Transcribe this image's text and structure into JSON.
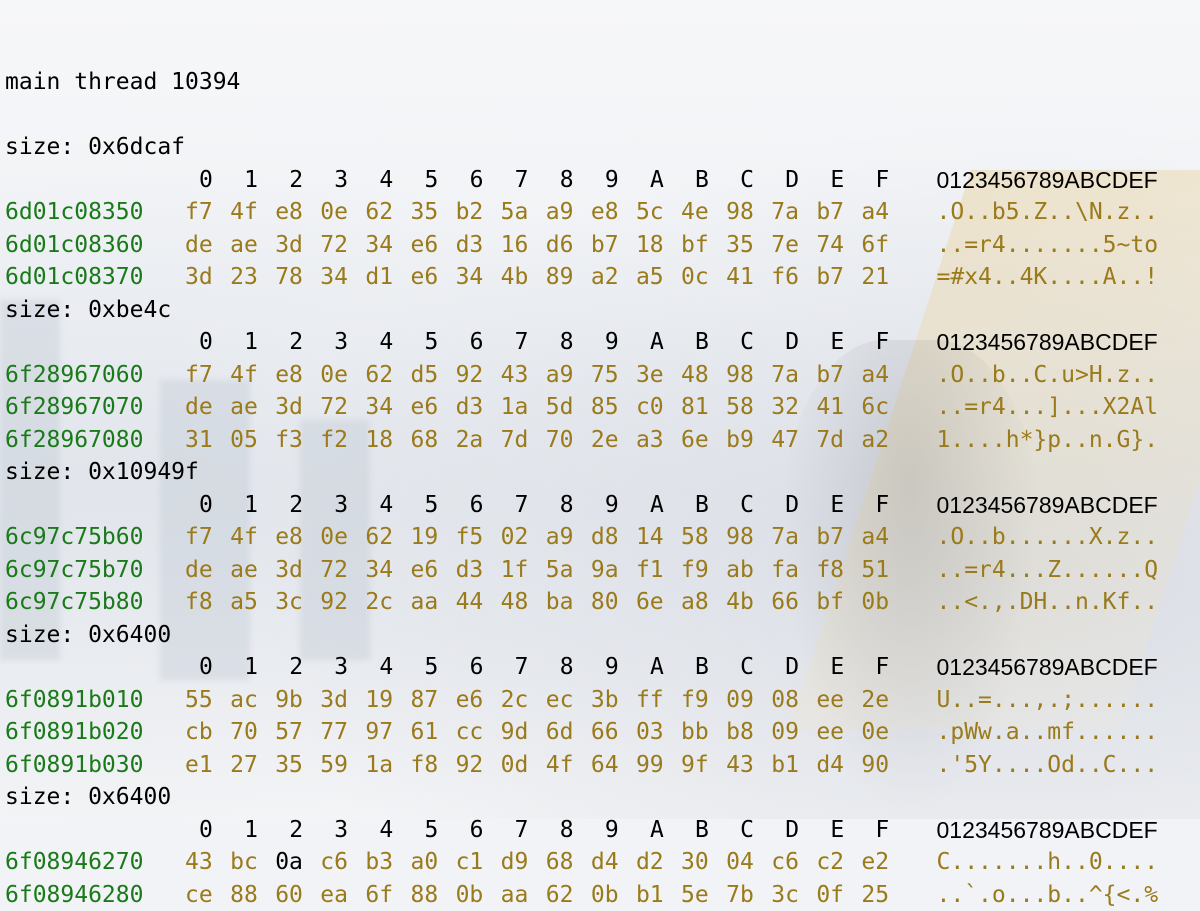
{
  "header": {
    "thread_line": "main thread 10394"
  },
  "column_headers": [
    "0",
    "1",
    "2",
    "3",
    "4",
    "5",
    "6",
    "7",
    "8",
    "9",
    "A",
    "B",
    "C",
    "D",
    "E",
    "F"
  ],
  "ascii_header": "0123456789ABCDEF",
  "blocks": [
    {
      "size_line": "size: 0x6dcaf",
      "rows": [
        {
          "address": "6d01c08350",
          "bytes": [
            "f7",
            "4f",
            "e8",
            "0e",
            "62",
            "35",
            "b2",
            "5a",
            "a9",
            "e8",
            "5c",
            "4e",
            "98",
            "7a",
            "b7",
            "a4"
          ],
          "ascii": ".O..b5.Z..\\N.z.."
        },
        {
          "address": "6d01c08360",
          "bytes": [
            "de",
            "ae",
            "3d",
            "72",
            "34",
            "e6",
            "d3",
            "16",
            "d6",
            "b7",
            "18",
            "bf",
            "35",
            "7e",
            "74",
            "6f"
          ],
          "ascii": "..=r4.......5~to"
        },
        {
          "address": "6d01c08370",
          "bytes": [
            "3d",
            "23",
            "78",
            "34",
            "d1",
            "e6",
            "34",
            "4b",
            "89",
            "a2",
            "a5",
            "0c",
            "41",
            "f6",
            "b7",
            "21"
          ],
          "ascii": "=#x4..4K....A..!"
        }
      ]
    },
    {
      "size_line": "size: 0xbe4c",
      "rows": [
        {
          "address": "6f28967060",
          "bytes": [
            "f7",
            "4f",
            "e8",
            "0e",
            "62",
            "d5",
            "92",
            "43",
            "a9",
            "75",
            "3e",
            "48",
            "98",
            "7a",
            "b7",
            "a4"
          ],
          "ascii": ".O..b..C.u>H.z.."
        },
        {
          "address": "6f28967070",
          "bytes": [
            "de",
            "ae",
            "3d",
            "72",
            "34",
            "e6",
            "d3",
            "1a",
            "5d",
            "85",
            "c0",
            "81",
            "58",
            "32",
            "41",
            "6c"
          ],
          "ascii": "..=r4...]...X2Al"
        },
        {
          "address": "6f28967080",
          "bytes": [
            "31",
            "05",
            "f3",
            "f2",
            "18",
            "68",
            "2a",
            "7d",
            "70",
            "2e",
            "a3",
            "6e",
            "b9",
            "47",
            "7d",
            "a2"
          ],
          "ascii": "1....h*}p..n.G}."
        }
      ]
    },
    {
      "size_line": "size: 0x10949f",
      "rows": [
        {
          "address": "6c97c75b60",
          "bytes": [
            "f7",
            "4f",
            "e8",
            "0e",
            "62",
            "19",
            "f5",
            "02",
            "a9",
            "d8",
            "14",
            "58",
            "98",
            "7a",
            "b7",
            "a4"
          ],
          "ascii": ".O..b......X.z.."
        },
        {
          "address": "6c97c75b70",
          "bytes": [
            "de",
            "ae",
            "3d",
            "72",
            "34",
            "e6",
            "d3",
            "1f",
            "5a",
            "9a",
            "f1",
            "f9",
            "ab",
            "fa",
            "f8",
            "51"
          ],
          "ascii": "..=r4...Z......Q"
        },
        {
          "address": "6c97c75b80",
          "bytes": [
            "f8",
            "a5",
            "3c",
            "92",
            "2c",
            "aa",
            "44",
            "48",
            "ba",
            "80",
            "6e",
            "a8",
            "4b",
            "66",
            "bf",
            "0b"
          ],
          "ascii": "..<.,.DH..n.Kf.."
        }
      ]
    },
    {
      "size_line": "size: 0x6400",
      "rows": [
        {
          "address": "6f0891b010",
          "bytes": [
            "55",
            "ac",
            "9b",
            "3d",
            "19",
            "87",
            "e6",
            "2c",
            "ec",
            "3b",
            "ff",
            "f9",
            "09",
            "08",
            "ee",
            "2e"
          ],
          "ascii": "U..=...,.;......"
        },
        {
          "address": "6f0891b020",
          "bytes": [
            "cb",
            "70",
            "57",
            "77",
            "97",
            "61",
            "cc",
            "9d",
            "6d",
            "66",
            "03",
            "bb",
            "b8",
            "09",
            "ee",
            "0e"
          ],
          "ascii": ".pWw.a..mf......"
        },
        {
          "address": "6f0891b030",
          "bytes": [
            "e1",
            "27",
            "35",
            "59",
            "1a",
            "f8",
            "92",
            "0d",
            "4f",
            "64",
            "99",
            "9f",
            "43",
            "b1",
            "d4",
            "90"
          ],
          "ascii": ".'5Y....Od..C..."
        }
      ]
    },
    {
      "size_line": "size: 0x6400",
      "rows": [
        {
          "address": "6f08946270",
          "bytes": [
            "43",
            "bc",
            "0a",
            "c6",
            "b3",
            "a0",
            "c1",
            "d9",
            "68",
            "d4",
            "d2",
            "30",
            "04",
            "c6",
            "c2",
            "e2"
          ],
          "ascii": "C.......h..0....",
          "highlight_index": 2
        },
        {
          "address": "6f08946280",
          "bytes": [
            "ce",
            "88",
            "60",
            "ea",
            "6f",
            "88",
            "0b",
            "aa",
            "62",
            "0b",
            "b1",
            "5e",
            "7b",
            "3c",
            "0f",
            "25"
          ],
          "ascii": "..`.o...b..^{<.%"
        }
      ]
    }
  ],
  "colors": {
    "address": "#1a7a1a",
    "bytes": "#9a7a1a",
    "highlight_byte": "#000000",
    "text": "#000000"
  }
}
